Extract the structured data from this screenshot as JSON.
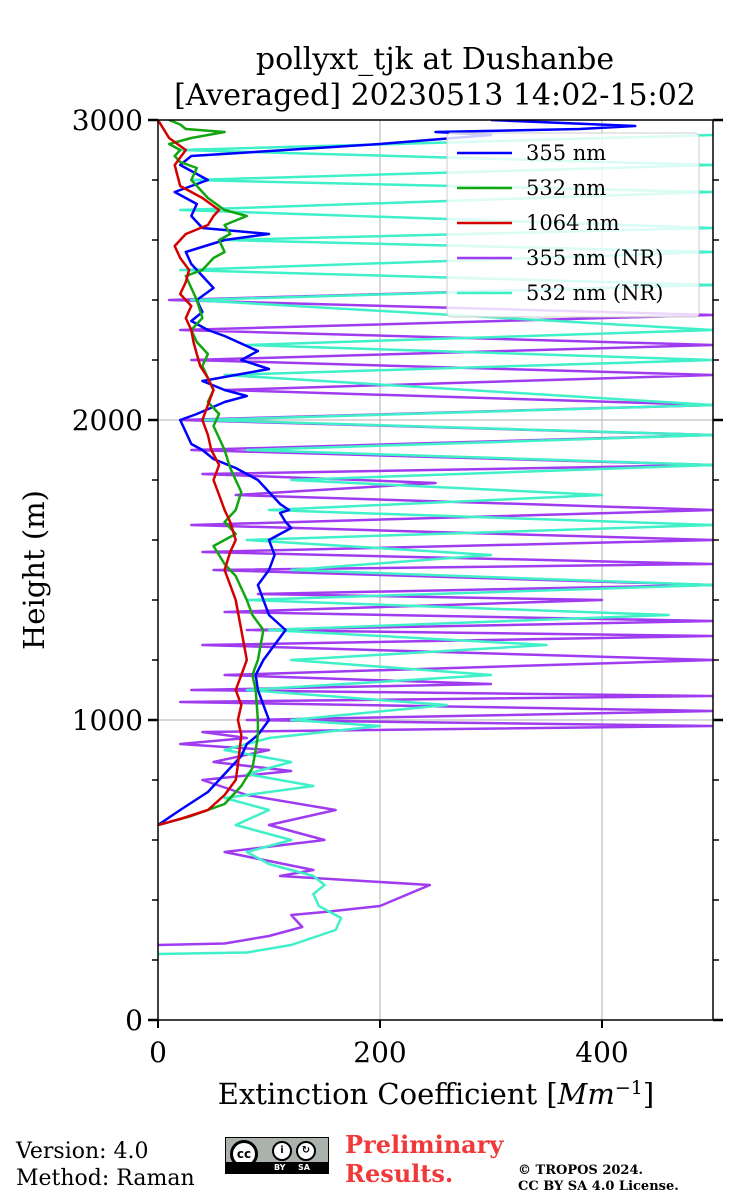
{
  "chart_data": {
    "type": "line",
    "title": "pollyxt_tjk at Dushanbe",
    "subtitle": "[Averaged] 20230513 14:02-15:02",
    "xlabel": "Extinction Coefficient [",
    "xlabel_unit": "Mm",
    "xlabel_exp": "−1",
    "xlabel_close": "]",
    "ylabel": "Height (m)",
    "xlim": [
      0,
      500
    ],
    "ylim": [
      0,
      3000
    ],
    "xticks": [
      "0",
      "200",
      "400"
    ],
    "yticks": [
      "0",
      "1000",
      "2000",
      "3000"
    ],
    "grid": true,
    "legend_position": "top-right",
    "series": [
      {
        "name": "355 nm",
        "color": "#0000ff",
        "x": [
          0,
          20,
          45,
          60,
          75,
          80,
          90,
          100,
          95,
          90,
          88,
          95,
          115,
          100,
          95,
          90,
          100,
          105,
          100,
          120,
          115,
          110,
          118,
          110,
          100,
          90,
          70,
          50,
          40,
          30,
          25,
          20,
          35,
          60,
          80,
          60,
          40,
          100,
          75,
          90,
          60,
          45,
          30,
          40,
          35,
          50,
          40,
          30,
          25,
          60,
          100,
          40,
          30,
          35,
          15,
          45,
          20,
          30,
          200,
          300,
          250,
          380,
          430,
          300
        ],
        "y": [
          650,
          700,
          760,
          820,
          880,
          920,
          950,
          1000,
          1050,
          1100,
          1150,
          1200,
          1300,
          1350,
          1400,
          1450,
          1500,
          1550,
          1600,
          1640,
          1660,
          1690,
          1700,
          1720,
          1760,
          1800,
          1840,
          1870,
          1900,
          1920,
          1960,
          2000,
          2020,
          2060,
          2080,
          2100,
          2130,
          2170,
          2200,
          2230,
          2280,
          2300,
          2330,
          2360,
          2400,
          2440,
          2480,
          2520,
          2560,
          2600,
          2620,
          2640,
          2680,
          2720,
          2760,
          2800,
          2850,
          2880,
          2920,
          2950,
          2960,
          2970,
          2980,
          3000
        ]
      },
      {
        "name": "532 nm",
        "color": "#11a611",
        "x": [
          0,
          30,
          60,
          75,
          85,
          88,
          90,
          90,
          88,
          85,
          90,
          95,
          85,
          80,
          70,
          60,
          50,
          70,
          60,
          70,
          75,
          70,
          65,
          60,
          55,
          50,
          55,
          45,
          50,
          45,
          40,
          45,
          35,
          30,
          40,
          35,
          30,
          25,
          40,
          50,
          60,
          55,
          65,
          60,
          80,
          60,
          45,
          40,
          30,
          35,
          20,
          15,
          20,
          10,
          30,
          60,
          25,
          20,
          10
        ],
        "y": [
          650,
          680,
          720,
          780,
          840,
          900,
          950,
          1000,
          1100,
          1150,
          1200,
          1300,
          1350,
          1400,
          1480,
          1520,
          1580,
          1620,
          1660,
          1700,
          1760,
          1800,
          1840,
          1900,
          1940,
          1980,
          2020,
          2060,
          2100,
          2140,
          2180,
          2220,
          2260,
          2300,
          2340,
          2400,
          2440,
          2480,
          2500,
          2540,
          2560,
          2600,
          2620,
          2650,
          2680,
          2700,
          2740,
          2760,
          2800,
          2840,
          2860,
          2880,
          2900,
          2920,
          2940,
          2960,
          2970,
          2985,
          3000
        ]
      },
      {
        "name": "1064 nm",
        "color": "#d40000",
        "x": [
          0,
          20,
          45,
          60,
          70,
          72,
          75,
          72,
          75,
          70,
          75,
          80,
          75,
          70,
          65,
          60,
          65,
          70,
          65,
          60,
          55,
          50,
          55,
          48,
          45,
          40,
          45,
          50,
          45,
          38,
          35,
          32,
          30,
          25,
          30,
          20,
          25,
          28,
          20,
          15,
          25,
          45,
          50,
          55,
          40,
          30,
          20,
          15,
          25,
          10,
          0
        ],
        "y": [
          650,
          670,
          700,
          750,
          800,
          850,
          950,
          1000,
          1050,
          1100,
          1150,
          1200,
          1300,
          1400,
          1450,
          1500,
          1560,
          1600,
          1660,
          1700,
          1750,
          1800,
          1850,
          1900,
          1950,
          2000,
          2050,
          2100,
          2140,
          2180,
          2220,
          2260,
          2300,
          2340,
          2380,
          2420,
          2460,
          2500,
          2540,
          2580,
          2620,
          2650,
          2680,
          2700,
          2740,
          2760,
          2780,
          2850,
          2900,
          2940,
          3000
        ]
      },
      {
        "name": "355 nm (NR)",
        "color": "#a03cf0",
        "x": [
          0,
          60,
          100,
          130,
          120,
          150,
          200,
          245,
          110,
          140,
          60,
          150,
          100,
          160,
          80,
          40,
          120,
          50,
          100,
          20,
          80,
          40,
          500,
          80,
          500,
          20,
          500,
          30,
          300,
          60,
          500,
          40,
          500,
          80,
          500,
          60,
          400,
          90,
          500,
          50,
          500,
          40,
          500,
          30,
          500,
          70,
          250,
          40,
          500,
          30,
          500,
          20,
          500,
          60,
          500,
          30,
          500,
          20,
          500,
          10,
          500
        ],
        "y": [
          250,
          255,
          280,
          310,
          350,
          360,
          380,
          450,
          480,
          500,
          560,
          600,
          650,
          700,
          750,
          800,
          830,
          860,
          900,
          920,
          940,
          960,
          980,
          1000,
          1030,
          1060,
          1080,
          1100,
          1120,
          1150,
          1200,
          1250,
          1280,
          1300,
          1330,
          1360,
          1400,
          1420,
          1450,
          1500,
          1520,
          1560,
          1600,
          1650,
          1700,
          1750,
          1790,
          1820,
          1850,
          1900,
          1950,
          2000,
          2050,
          2100,
          2150,
          2200,
          2250,
          2300,
          2350,
          2400,
          2450
        ]
      },
      {
        "name": "532 nm (NR)",
        "color": "#40f0c8",
        "x": [
          0,
          80,
          120,
          160,
          165,
          145,
          140,
          150,
          140,
          100,
          80,
          120,
          70,
          100,
          60,
          140,
          80,
          120,
          60,
          100,
          200,
          120,
          260,
          80,
          300,
          120,
          350,
          100,
          460,
          80,
          500,
          120,
          300,
          80,
          500,
          100,
          400,
          120,
          500,
          80,
          500,
          40,
          500,
          60,
          500,
          80,
          500,
          30,
          500,
          20,
          500,
          60,
          500,
          20,
          500,
          30,
          500,
          20,
          500
        ],
        "y": [
          220,
          225,
          250,
          300,
          340,
          380,
          420,
          450,
          480,
          520,
          560,
          600,
          650,
          700,
          740,
          780,
          820,
          860,
          900,
          940,
          980,
          1000,
          1050,
          1100,
          1150,
          1200,
          1250,
          1300,
          1350,
          1400,
          1450,
          1500,
          1550,
          1600,
          1650,
          1700,
          1750,
          1800,
          1850,
          1900,
          1950,
          2000,
          2050,
          2150,
          2200,
          2250,
          2300,
          2400,
          2450,
          2500,
          2560,
          2600,
          2640,
          2700,
          2760,
          2800,
          2850,
          2900,
          2950
        ]
      }
    ]
  },
  "footer": {
    "version": "Version: 4.0",
    "method": "Method: Raman",
    "prelim_line1": "Preliminary",
    "prelim_line2": "Results.",
    "copyright_line1": "© TROPOS 2024.",
    "copyright_line2": "CC BY SA 4.0 License.",
    "cc_text": "cc",
    "cc_by": "BY",
    "cc_sa": "SA"
  }
}
